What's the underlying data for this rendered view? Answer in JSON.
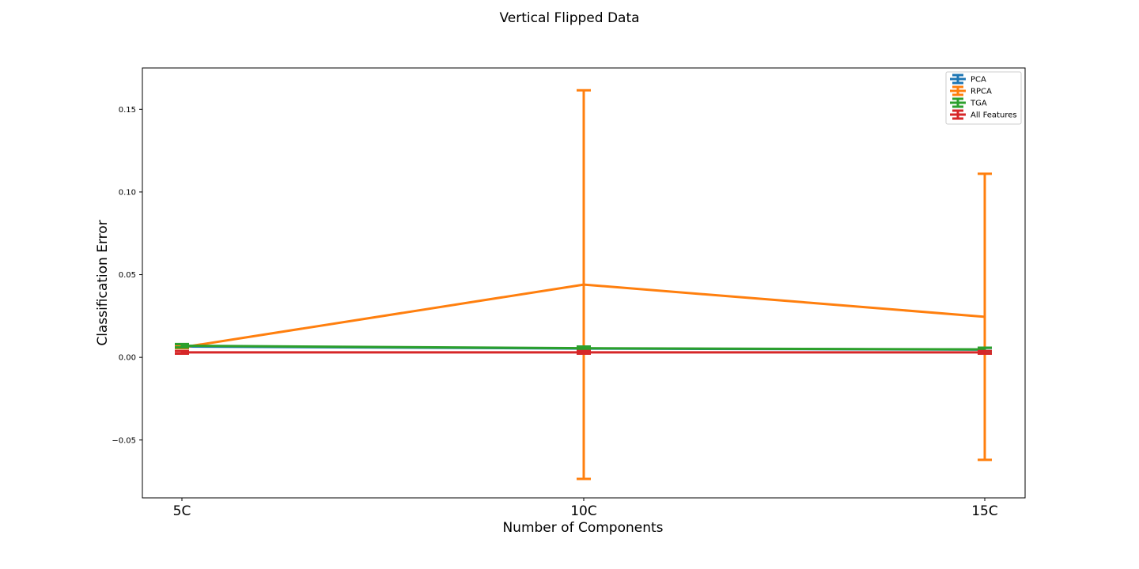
{
  "chart_data": {
    "type": "line",
    "title": "Vertical Flipped Data",
    "xlabel": "Number of Components",
    "ylabel": "Classification Error",
    "categories": [
      "5C",
      "10C",
      "15C"
    ],
    "ylim": [
      -0.085,
      0.175
    ],
    "yticks": [
      -0.05,
      0.0,
      0.05,
      0.1,
      0.15
    ],
    "ytick_labels": [
      "−0.05",
      "0.00",
      "0.05",
      "0.10",
      "0.15"
    ],
    "grid": false,
    "legend_position": "top-right",
    "series": [
      {
        "name": "PCA",
        "color": "#1f77b4",
        "values": [
          0.0065,
          0.0053,
          0.0047
        ],
        "errors": [
          0.001,
          0.001,
          0.001
        ]
      },
      {
        "name": "RPCA",
        "color": "#ff7f0e",
        "values": [
          0.006,
          0.044,
          0.0245
        ],
        "errors": [
          0.0005,
          0.1175,
          0.0865
        ]
      },
      {
        "name": "TGA",
        "color": "#2ca02c",
        "values": [
          0.007,
          0.0055,
          0.0048
        ],
        "errors": [
          0.001,
          0.001,
          0.001
        ]
      },
      {
        "name": "All Features",
        "color": "#d62728",
        "values": [
          0.003,
          0.003,
          0.003
        ],
        "errors": [
          0.0008,
          0.0008,
          0.0008
        ]
      }
    ]
  }
}
